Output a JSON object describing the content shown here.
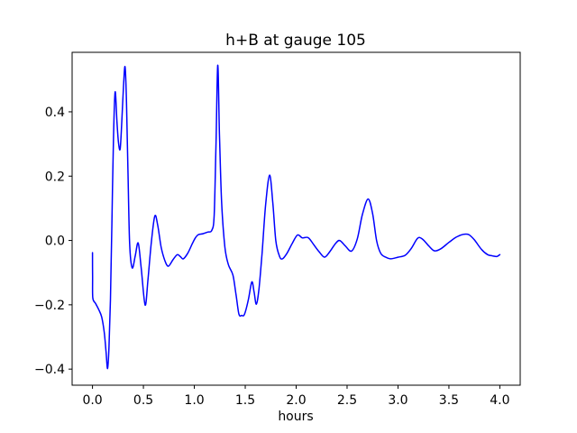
{
  "chart_data": {
    "type": "line",
    "title": "h+B at gauge 105",
    "xlabel": "hours",
    "ylabel": "",
    "xlim": [
      -0.2,
      4.2
    ],
    "ylim": [
      -0.45,
      0.585
    ],
    "grid": false,
    "legend": "none",
    "background": "#ffffff",
    "frame_color": "#000000",
    "text_color": "#000000",
    "x_ticks": [
      {
        "v": 0.0,
        "label": "0.0"
      },
      {
        "v": 0.5,
        "label": "0.5"
      },
      {
        "v": 1.0,
        "label": "1.0"
      },
      {
        "v": 1.5,
        "label": "1.5"
      },
      {
        "v": 2.0,
        "label": "2.0"
      },
      {
        "v": 2.5,
        "label": "2.5"
      },
      {
        "v": 3.0,
        "label": "3.0"
      },
      {
        "v": 3.5,
        "label": "3.5"
      },
      {
        "v": 4.0,
        "label": "4.0"
      }
    ],
    "y_ticks": [
      {
        "v": -0.4,
        "label": "−0.4"
      },
      {
        "v": -0.2,
        "label": "−0.2"
      },
      {
        "v": 0.0,
        "label": "0.0"
      },
      {
        "v": 0.2,
        "label": "0.2"
      },
      {
        "v": 0.4,
        "label": "0.4"
      }
    ],
    "series": [
      {
        "name": "h+B",
        "color": "#0000ff",
        "line_width": 1.5,
        "points": [
          [
            0.0,
            -0.038
          ],
          [
            0.001,
            -0.11
          ],
          [
            0.003,
            -0.178
          ],
          [
            0.03,
            -0.196
          ],
          [
            0.06,
            -0.214
          ],
          [
            0.09,
            -0.238
          ],
          [
            0.115,
            -0.285
          ],
          [
            0.133,
            -0.345
          ],
          [
            0.148,
            -0.398
          ],
          [
            0.162,
            -0.33
          ],
          [
            0.176,
            -0.185
          ],
          [
            0.19,
            0.05
          ],
          [
            0.206,
            0.32
          ],
          [
            0.222,
            0.462
          ],
          [
            0.24,
            0.37
          ],
          [
            0.255,
            0.305
          ],
          [
            0.272,
            0.285
          ],
          [
            0.288,
            0.37
          ],
          [
            0.305,
            0.48
          ],
          [
            0.32,
            0.54
          ],
          [
            0.334,
            0.43
          ],
          [
            0.348,
            0.22
          ],
          [
            0.365,
            -0.01
          ],
          [
            0.39,
            -0.085
          ],
          [
            0.42,
            -0.048
          ],
          [
            0.449,
            -0.008
          ],
          [
            0.478,
            -0.085
          ],
          [
            0.517,
            -0.201
          ],
          [
            0.545,
            -0.12
          ],
          [
            0.578,
            -0.005
          ],
          [
            0.612,
            0.076
          ],
          [
            0.64,
            0.048
          ],
          [
            0.675,
            -0.022
          ],
          [
            0.71,
            -0.062
          ],
          [
            0.745,
            -0.08
          ],
          [
            0.79,
            -0.06
          ],
          [
            0.833,
            -0.044
          ],
          [
            0.862,
            -0.05
          ],
          [
            0.892,
            -0.057
          ],
          [
            0.935,
            -0.04
          ],
          [
            0.98,
            -0.01
          ],
          [
            1.01,
            0.008
          ],
          [
            1.039,
            0.018
          ],
          [
            1.084,
            0.021
          ],
          [
            1.13,
            0.026
          ],
          [
            1.172,
            0.032
          ],
          [
            1.195,
            0.08
          ],
          [
            1.213,
            0.3
          ],
          [
            1.23,
            0.545
          ],
          [
            1.247,
            0.33
          ],
          [
            1.268,
            0.12
          ],
          [
            1.3,
            -0.02
          ],
          [
            1.334,
            -0.075
          ],
          [
            1.379,
            -0.108
          ],
          [
            1.41,
            -0.17
          ],
          [
            1.438,
            -0.229
          ],
          [
            1.465,
            -0.233
          ],
          [
            1.492,
            -0.23
          ],
          [
            1.53,
            -0.185
          ],
          [
            1.564,
            -0.129
          ],
          [
            1.586,
            -0.158
          ],
          [
            1.609,
            -0.198
          ],
          [
            1.635,
            -0.15
          ],
          [
            1.665,
            -0.04
          ],
          [
            1.7,
            0.11
          ],
          [
            1.739,
            0.203
          ],
          [
            1.77,
            0.12
          ],
          [
            1.8,
            0.0
          ],
          [
            1.835,
            -0.048
          ],
          [
            1.865,
            -0.057
          ],
          [
            1.91,
            -0.04
          ],
          [
            1.96,
            -0.01
          ],
          [
            2.013,
            0.017
          ],
          [
            2.06,
            0.008
          ],
          [
            2.117,
            0.009
          ],
          [
            2.17,
            -0.012
          ],
          [
            2.225,
            -0.035
          ],
          [
            2.279,
            -0.052
          ],
          [
            2.33,
            -0.035
          ],
          [
            2.385,
            -0.01
          ],
          [
            2.427,
            0.0
          ],
          [
            2.48,
            -0.016
          ],
          [
            2.544,
            -0.033
          ],
          [
            2.6,
            0.005
          ],
          [
            2.65,
            0.08
          ],
          [
            2.706,
            0.129
          ],
          [
            2.75,
            0.085
          ],
          [
            2.79,
            0.0
          ],
          [
            2.83,
            -0.04
          ],
          [
            2.88,
            -0.052
          ],
          [
            2.93,
            -0.057
          ],
          [
            3.0,
            -0.052
          ],
          [
            3.07,
            -0.046
          ],
          [
            3.13,
            -0.025
          ],
          [
            3.193,
            0.007
          ],
          [
            3.24,
            0.004
          ],
          [
            3.3,
            -0.016
          ],
          [
            3.356,
            -0.032
          ],
          [
            3.42,
            -0.026
          ],
          [
            3.5,
            -0.006
          ],
          [
            3.57,
            0.01
          ],
          [
            3.64,
            0.019
          ],
          [
            3.695,
            0.018
          ],
          [
            3.75,
            0.002
          ],
          [
            3.82,
            -0.028
          ],
          [
            3.88,
            -0.044
          ],
          [
            3.93,
            -0.048
          ],
          [
            3.97,
            -0.05
          ],
          [
            4.0,
            -0.044
          ]
        ]
      }
    ]
  }
}
